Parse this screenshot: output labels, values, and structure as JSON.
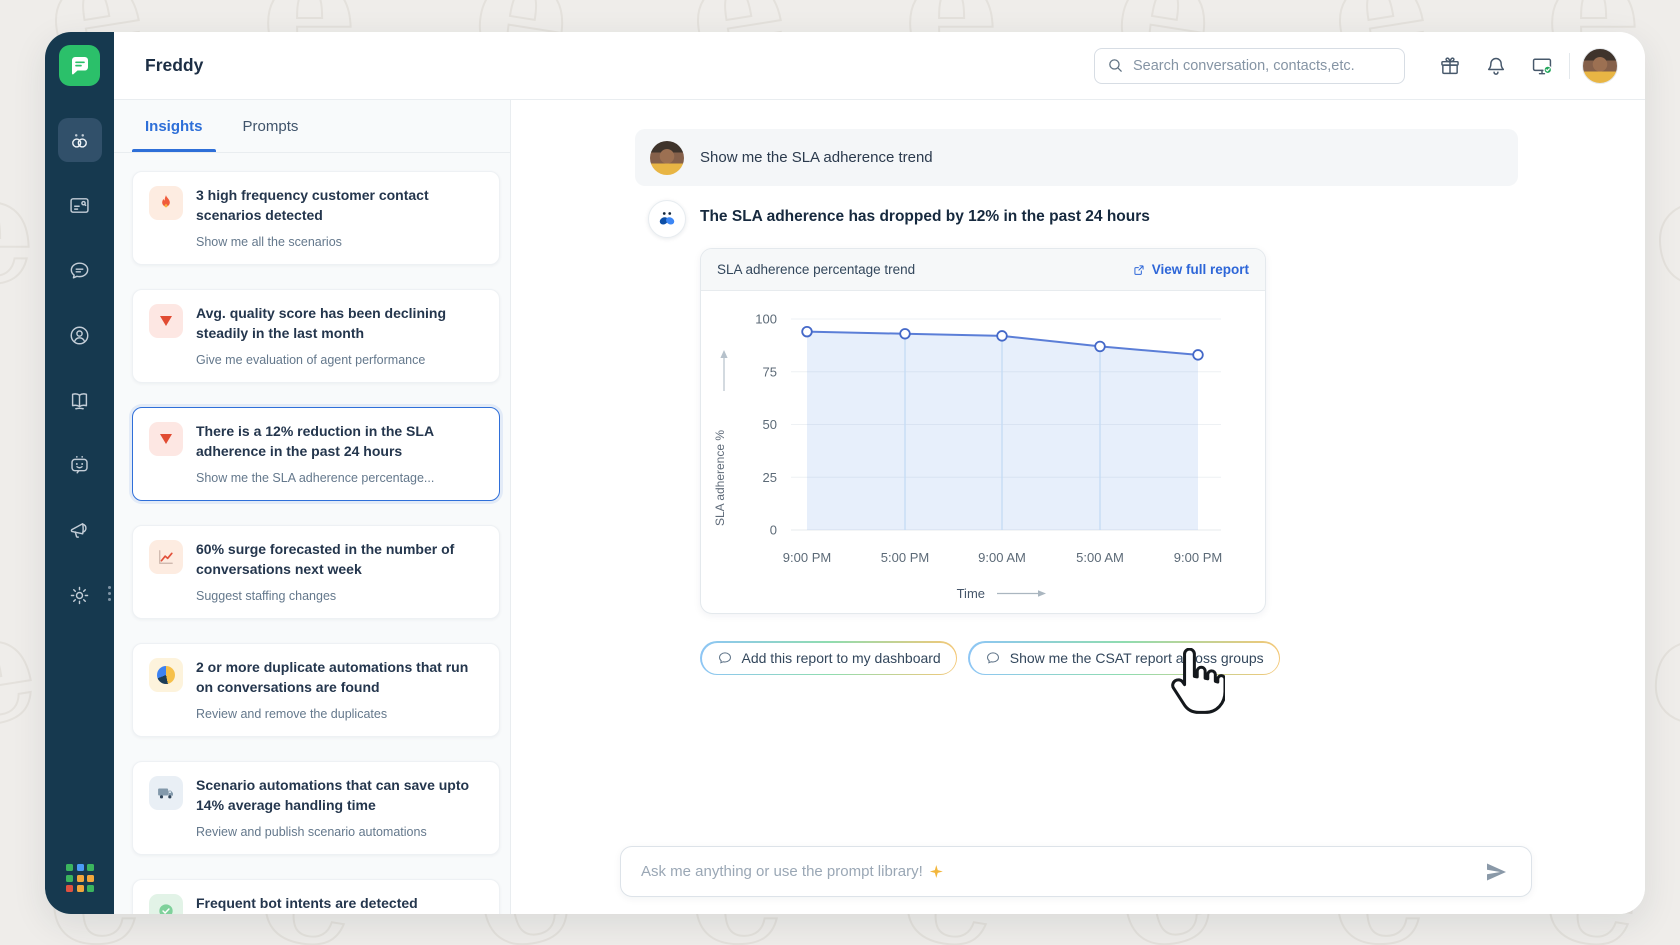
{
  "header": {
    "title": "Freddy",
    "search": {
      "placeholder": "Search conversation, contacts,etc.",
      "icon": "search-icon"
    },
    "action_icons": [
      "gift-icon",
      "notification-bell-icon",
      "system-status-check-icon"
    ],
    "avatar": "user-avatar"
  },
  "sidebar": {
    "logo_icon": "freshchat-logo",
    "items": [
      {
        "icon": "freddy-ai-icon",
        "active": true
      },
      {
        "icon": "inbox-icon",
        "active": false
      },
      {
        "icon": "conversations-icon",
        "active": false
      },
      {
        "icon": "contacts-icon",
        "active": false
      },
      {
        "icon": "knowledge-base-icon",
        "active": false
      },
      {
        "icon": "bot-icon",
        "active": false
      },
      {
        "icon": "campaigns-icon",
        "active": false
      },
      {
        "icon": "settings-icon",
        "active": false,
        "has_kebab": true
      }
    ],
    "apps_icon": "apps-grid-icon"
  },
  "panel": {
    "tabs": [
      {
        "label": "Insights",
        "active": true
      },
      {
        "label": "Prompts",
        "active": false
      }
    ],
    "cards": [
      {
        "icon": "flame-icon",
        "icon_bg": "#fdece1",
        "title": "3 high frequency customer contact scenarios detected",
        "subtitle": "Show me all the scenarios",
        "selected": false
      },
      {
        "icon": "trend-down-icon",
        "icon_bg": "#fde7e3",
        "title": "Avg. quality score has been declining steadily in the last month",
        "subtitle": "Give me evaluation of agent performance",
        "selected": false
      },
      {
        "icon": "trend-down-icon",
        "icon_bg": "#fde7e3",
        "title": "There is a 12% reduction in the SLA adherence in the past 24 hours",
        "subtitle": "Show me the SLA adherence percentage...",
        "selected": true
      },
      {
        "icon": "surge-chart-icon",
        "icon_bg": "#fdece1",
        "title": "60% surge forecasted in the number of conversations next week",
        "subtitle": "Suggest staffing changes",
        "selected": false
      },
      {
        "icon": "duplicate-pie-icon",
        "icon_bg": "#fdf3dc",
        "title": "2 or more duplicate automations that run on conversations are found",
        "subtitle": "Review and remove the duplicates",
        "selected": false
      },
      {
        "icon": "truck-icon",
        "icon_bg": "#e9eff5",
        "title": "Scenario automations that can save upto 14% average handling time",
        "subtitle": "Review and publish scenario automations",
        "selected": false
      },
      {
        "icon": "intent-icon",
        "icon_bg": "#e2f3e7",
        "title": "Frequent bot intents are detected",
        "subtitle": "",
        "selected": false,
        "clipped": true
      }
    ]
  },
  "chat": {
    "user_message": {
      "text": "Show me the SLA adherence trend"
    },
    "ai_response": {
      "heading": "The SLA adherence has dropped by 12% in the past 24 hours"
    },
    "report_card": {
      "title": "SLA adherence percentage trend",
      "link_label": "View full report",
      "link_icon": "external-link-icon"
    },
    "suggestions": [
      {
        "icon": "chat-bubble-icon",
        "label": "Add this report to my dashboard"
      },
      {
        "icon": "chat-bubble-icon",
        "label": "Show me the CSAT report across groups",
        "hovered": true
      }
    ],
    "composer": {
      "placeholder": "Ask me anything or use the prompt library!",
      "placeholder_emoji": "✨",
      "send_icon": "send-icon"
    },
    "overlay_cursor": "hand-pointer-cursor"
  },
  "chart_data": {
    "type": "area",
    "title": "SLA adherence percentage trend",
    "x": [
      "9:00 PM",
      "5:00 PM",
      "9:00 AM",
      "5:00 AM",
      "9:00 PM"
    ],
    "values": [
      94,
      93,
      92,
      87,
      83
    ],
    "xlabel": "Time",
    "ylabel": "SLA adherence %",
    "ylim": [
      0,
      100
    ],
    "yticks": [
      0,
      25,
      50,
      75,
      100
    ],
    "grid": true,
    "legend": false,
    "line_color": "#5b7ed7",
    "point_stroke": "#4468c8",
    "fill_color": "rgba(120,165,235,0.18)",
    "vline_color": "#c6dcf5"
  },
  "colors": {
    "sidebar_bg": "#16394f",
    "accent_blue": "#2e6fd8",
    "logo_green": "#2bc06a",
    "selected_border": "#2f6fd9",
    "text_dark": "#1c2e44",
    "text_muted": "#64788c"
  }
}
